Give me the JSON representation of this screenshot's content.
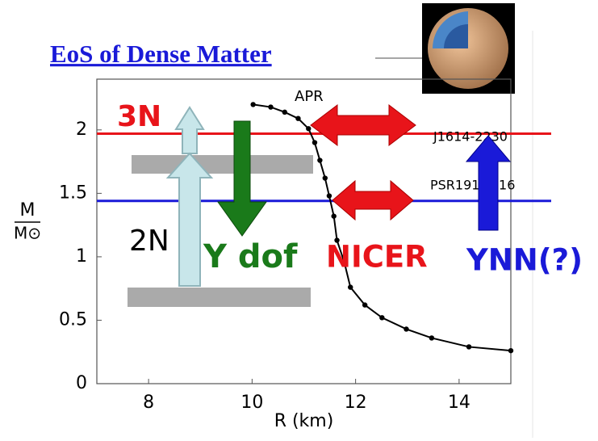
{
  "chart_data": {
    "type": "line",
    "title": "EoS of Dense Matter",
    "x_label": "R (km)",
    "y_label": {
      "numerator": "M",
      "denominator": "M⊙"
    },
    "xlim": [
      7,
      15
    ],
    "ylim": [
      0,
      2.4
    ],
    "xticks": [
      8,
      10,
      12,
      14
    ],
    "yticks": [
      0,
      0.5,
      1,
      1.5,
      2
    ],
    "series": [
      {
        "name": "APR",
        "color": "#000000",
        "x": [
          10.02,
          10.36,
          10.63,
          10.89,
          11.09,
          11.21,
          11.31,
          11.41,
          11.49,
          11.58,
          11.64,
          11.78,
          11.9,
          12.18,
          12.51,
          12.98,
          13.47,
          14.19,
          15
        ],
        "values": [
          2.2,
          2.18,
          2.14,
          2.09,
          2.01,
          1.9,
          1.76,
          1.62,
          1.48,
          1.32,
          1.13,
          0.96,
          0.76,
          0.62,
          0.52,
          0.43,
          0.36,
          0.29,
          0.26
        ]
      }
    ],
    "reference_lines": [
      {
        "label": "J1614-2230",
        "value": 1.97,
        "color": "#e8141a"
      },
      {
        "label": "PSR1913+16",
        "value": 1.44,
        "color": "#1a1ad8"
      }
    ],
    "annotations": [
      {
        "text": "3N",
        "color": "#e8141a"
      },
      {
        "text": "2N",
        "color": "#000000"
      },
      {
        "text": "Y dof",
        "color": "#1a7a1a"
      },
      {
        "text": "NICER",
        "color": "#e8141a"
      },
      {
        "text": "YNN(?)",
        "color": "#1a1ad8"
      }
    ]
  }
}
